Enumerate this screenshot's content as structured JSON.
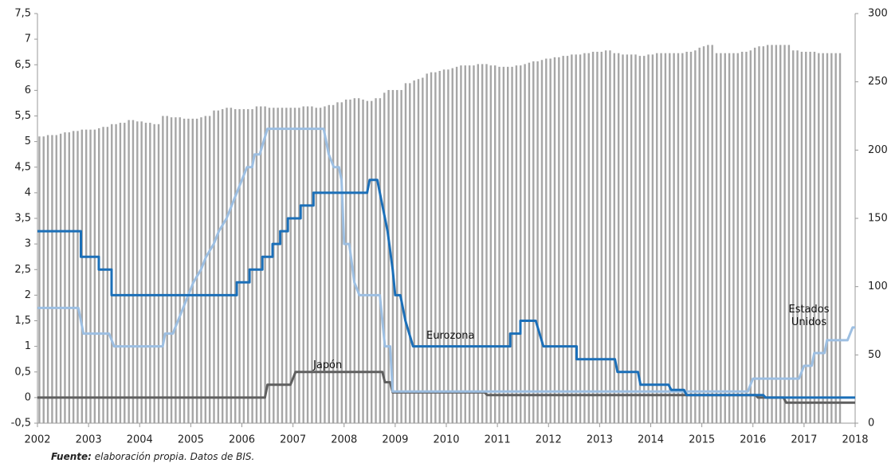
{
  "chart_data": {
    "type": "line",
    "xlim": [
      2002,
      2018
    ],
    "xticks": [
      2002,
      2003,
      2004,
      2005,
      2006,
      2007,
      2008,
      2009,
      2010,
      2011,
      2012,
      2013,
      2014,
      2015,
      2016,
      2017,
      2018
    ],
    "ylim": [
      -0.5,
      7.5
    ],
    "yticks": [
      {
        "value": -0.5,
        "label": "-0,5"
      },
      0,
      {
        "value": 0.5,
        "label": "0,5"
      },
      1,
      {
        "value": 1.5,
        "label": "1,5"
      },
      2,
      {
        "value": 2.5,
        "label": "2,5"
      },
      3,
      {
        "value": 3.5,
        "label": "3,5"
      },
      4,
      {
        "value": 4.5,
        "label": "4,5"
      },
      5,
      {
        "value": 5.5,
        "label": "5,5"
      },
      6,
      {
        "value": 6.5,
        "label": "6,5"
      },
      7,
      {
        "value": 7.5,
        "label": "7,5"
      }
    ],
    "y2lim": [
      0,
      300
    ],
    "y2ticks": [
      0,
      50,
      100,
      150,
      200,
      250,
      300
    ],
    "bars": {
      "type": "bar",
      "axis": "y2",
      "color": "#a6a6a6",
      "start": 2002,
      "frequency": "monthly",
      "values": [
        210,
        210,
        211,
        211,
        211,
        212,
        213,
        213,
        214,
        214,
        215,
        215,
        215,
        215,
        216,
        217,
        217,
        219,
        219,
        220,
        220,
        222,
        222,
        221,
        221,
        220,
        220,
        219,
        219,
        225,
        225,
        224,
        224,
        224,
        223,
        223,
        223,
        223,
        224,
        225,
        225,
        229,
        229,
        230,
        231,
        231,
        230,
        230,
        230,
        230,
        230,
        232,
        232,
        232,
        231,
        231,
        231,
        231,
        231,
        231,
        231,
        231,
        232,
        232,
        232,
        231,
        231,
        232,
        233,
        233,
        235,
        235,
        237,
        237,
        238,
        238,
        237,
        236,
        236,
        238,
        238,
        242,
        244,
        244,
        244,
        244,
        249,
        249,
        251,
        252,
        253,
        256,
        257,
        257,
        258,
        259,
        259,
        260,
        261,
        262,
        262,
        262,
        262,
        263,
        263,
        263,
        262,
        262,
        261,
        261,
        261,
        261,
        262,
        262,
        263,
        264,
        265,
        265,
        266,
        267,
        267,
        268,
        268,
        269,
        269,
        270,
        270,
        270,
        271,
        271,
        272,
        272,
        272,
        273,
        273,
        271,
        271,
        270,
        270,
        270,
        270,
        269,
        269,
        270,
        270,
        271,
        271,
        271,
        271,
        271,
        271,
        271,
        272,
        272,
        273,
        275,
        276,
        277,
        277,
        271,
        271,
        271,
        271,
        271,
        271,
        272,
        272,
        273,
        275,
        276,
        276,
        277,
        277,
        277,
        277,
        277,
        277,
        273,
        273,
        272,
        272,
        272,
        272,
        271,
        271,
        271,
        271,
        271,
        271
      ]
    },
    "series": [
      {
        "name": "Eurozona",
        "color": "#1b6fb8",
        "x": [
          2002,
          2002.85,
          2002.85,
          2003.2,
          2003.2,
          2003.45,
          2003.45,
          2005.9,
          2005.9,
          2006.15,
          2006.15,
          2006.4,
          2006.4,
          2006.6,
          2006.6,
          2006.75,
          2006.75,
          2006.9,
          2006.9,
          2007.15,
          2007.15,
          2007.4,
          2007.4,
          2008.45,
          2008.5,
          2008.65,
          2008.85,
          2008.95,
          2009.0,
          2009.1,
          2009.2,
          2009.35,
          2011.25,
          2011.25,
          2011.45,
          2011.45,
          2011.75,
          2011.9,
          2012.55,
          2012.55,
          2013.3,
          2013.35,
          2013.75,
          2013.8,
          2014.35,
          2014.4,
          2014.65,
          2014.7,
          2016.2,
          2016.25,
          2018
        ],
        "values": [
          3.25,
          3.25,
          2.75,
          2.75,
          2.5,
          2.5,
          2,
          2,
          2.25,
          2.25,
          2.5,
          2.5,
          2.75,
          2.75,
          3,
          3,
          3.25,
          3.25,
          3.5,
          3.5,
          3.75,
          3.75,
          4,
          4,
          4.25,
          4.25,
          3.25,
          2.5,
          2,
          2,
          1.5,
          1,
          1,
          1.25,
          1.25,
          1.5,
          1.5,
          1,
          1,
          0.75,
          0.75,
          0.5,
          0.5,
          0.25,
          0.25,
          0.15,
          0.15,
          0.05,
          0.05,
          0,
          0
        ]
      },
      {
        "name": "Estados Unidos",
        "color": "#9dbfe2",
        "x": [
          2002,
          2002.8,
          2002.9,
          2003.4,
          2003.5,
          2004.45,
          2004.5,
          2004.65,
          2004.75,
          2004.85,
          2004.95,
          2005.05,
          2005.2,
          2005.3,
          2005.45,
          2005.55,
          2005.7,
          2005.8,
          2005.9,
          2006.0,
          2006.1,
          2006.2,
          2006.25,
          2006.35,
          2006.5,
          2007.6,
          2007.7,
          2007.8,
          2007.9,
          2007.95,
          2008.0,
          2008.1,
          2008.2,
          2008.3,
          2008.7,
          2008.8,
          2008.9,
          2008.95,
          2015.9,
          2016.0,
          2016.9,
          2017.0,
          2017.15,
          2017.2,
          2017.4,
          2017.45,
          2017.85,
          2017.95,
          2018
        ],
        "values": [
          1.75,
          1.75,
          1.25,
          1.25,
          1,
          1,
          1.25,
          1.25,
          1.5,
          1.75,
          2,
          2.25,
          2.5,
          2.75,
          3,
          3.25,
          3.5,
          3.75,
          4,
          4.25,
          4.5,
          4.5,
          4.75,
          4.75,
          5.25,
          5.25,
          4.75,
          4.5,
          4.5,
          4.25,
          3,
          3,
          2.25,
          2,
          2,
          1,
          1,
          0.12,
          0.12,
          0.37,
          0.37,
          0.62,
          0.62,
          0.87,
          0.87,
          1.12,
          1.12,
          1.37,
          1.37
        ]
      },
      {
        "name": "Japón",
        "color": "#5f5f5f",
        "x": [
          2002,
          2006.45,
          2006.5,
          2006.95,
          2007.05,
          2008.75,
          2008.8,
          2008.9,
          2008.95,
          2010.75,
          2010.8,
          2016.05,
          2016.1,
          2016.6,
          2016.65,
          2018
        ],
        "values": [
          0,
          0,
          0.25,
          0.25,
          0.5,
          0.5,
          0.3,
          0.3,
          0.1,
          0.1,
          0.05,
          0.05,
          0,
          0,
          -0.1,
          -0.1
        ]
      }
    ],
    "source": {
      "label": "Fuente:",
      "text": "elaboración propia. Datos de BIS."
    }
  }
}
